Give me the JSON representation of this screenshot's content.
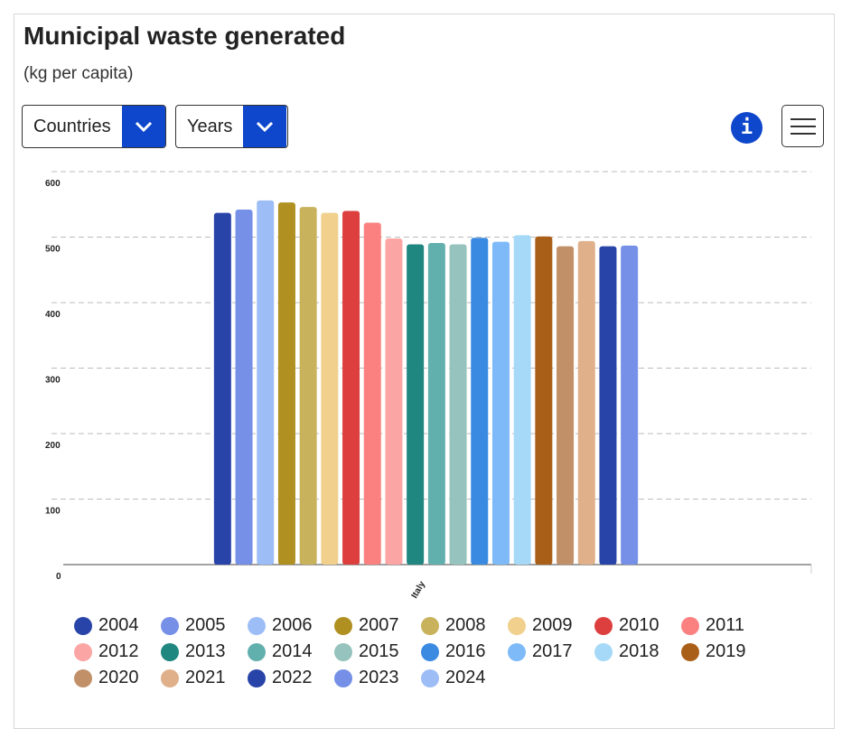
{
  "title": "Municipal waste generated",
  "subtitle": "(kg per capita)",
  "controls": {
    "countries_label": "Countries",
    "years_label": "Years",
    "info_icon": "i"
  },
  "chart_data": {
    "type": "bar",
    "title": "Municipal waste generated",
    "ylabel": "kg per capita",
    "categories": [
      "Italy"
    ],
    "ylim": [
      0,
      600
    ],
    "yticks": [
      "0",
      "100",
      "200",
      "300",
      "400",
      "500",
      "600"
    ],
    "grid": true,
    "legend_position": "bottom",
    "series": [
      {
        "name": "2004",
        "color": "#2844a8",
        "values": [
          537
        ]
      },
      {
        "name": "2005",
        "color": "#7590e6",
        "values": [
          542
        ]
      },
      {
        "name": "2006",
        "color": "#9dbdf7",
        "values": [
          556
        ]
      },
      {
        "name": "2007",
        "color": "#b09020",
        "values": [
          553
        ]
      },
      {
        "name": "2008",
        "color": "#c8b25c",
        "values": [
          546
        ]
      },
      {
        "name": "2009",
        "color": "#f0d08c",
        "values": [
          537
        ]
      },
      {
        "name": "2010",
        "color": "#dd3f3f",
        "values": [
          540
        ]
      },
      {
        "name": "2011",
        "color": "#fb8181",
        "values": [
          522
        ]
      },
      {
        "name": "2012",
        "color": "#fca5a5",
        "values": [
          498
        ]
      },
      {
        "name": "2013",
        "color": "#1f8680",
        "values": [
          489
        ]
      },
      {
        "name": "2014",
        "color": "#62b0ae",
        "values": [
          491
        ]
      },
      {
        "name": "2015",
        "color": "#96c3bd",
        "values": [
          489
        ]
      },
      {
        "name": "2016",
        "color": "#3a8ae2",
        "values": [
          499
        ]
      },
      {
        "name": "2017",
        "color": "#7ebaf8",
        "values": [
          493
        ]
      },
      {
        "name": "2018",
        "color": "#a5d9f7",
        "values": [
          503
        ]
      },
      {
        "name": "2019",
        "color": "#aa5f18",
        "values": [
          501
        ]
      },
      {
        "name": "2020",
        "color": "#c19068",
        "values": [
          486
        ]
      },
      {
        "name": "2021",
        "color": "#dfb08a",
        "values": [
          494
        ]
      },
      {
        "name": "2022",
        "color": "#2844a8",
        "values": [
          486
        ]
      },
      {
        "name": "2023",
        "color": "#7590e6",
        "values": [
          487
        ]
      },
      {
        "name": "2024",
        "color": "#9dbdf7",
        "values": [
          null
        ]
      }
    ]
  }
}
